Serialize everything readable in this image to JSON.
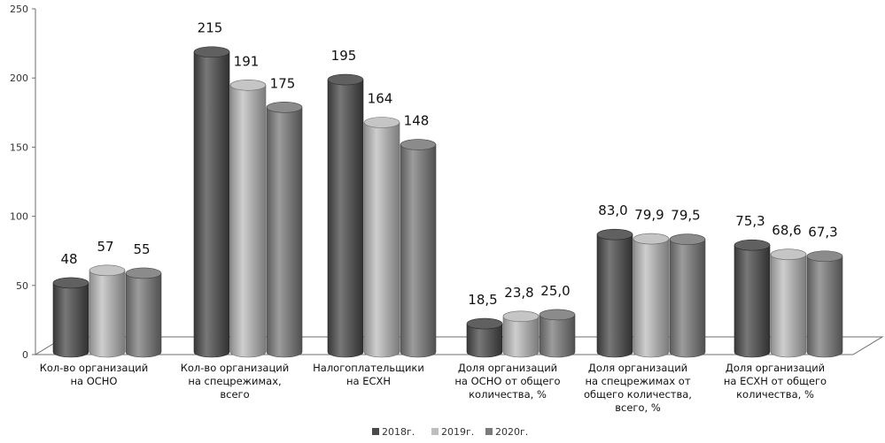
{
  "chart_data": {
    "type": "bar",
    "style": "3d-cylinder",
    "title": "",
    "xlabel": "",
    "ylabel": "",
    "ylim": [
      0,
      250
    ],
    "yticks": [
      0,
      50,
      100,
      150,
      200,
      250
    ],
    "ytick_labels": [
      "0",
      "50",
      "100",
      "150",
      "200",
      "250"
    ],
    "grid": false,
    "legend_position": "bottom-center",
    "categories": [
      [
        "Кол-во организаций",
        "на ОСНО"
      ],
      [
        "Кол-во организаций",
        "на спецрежимах,",
        "всего"
      ],
      [
        "Налогоплательщики",
        "на ЕСХН"
      ],
      [
        "Доля организаций",
        "на ОСНО от общего",
        "количества, %"
      ],
      [
        "Доля организаций",
        "на спецрежимах от",
        "общего количества,",
        "всего, %"
      ],
      [
        "Доля организаций",
        "на ЕСХН от общего",
        "количества, %"
      ]
    ],
    "series": [
      {
        "name": "2018г.",
        "color": "#4a4a4a",
        "values": [
          48,
          215,
          195,
          18.5,
          83.0,
          75.3
        ],
        "labels": [
          "48",
          "215",
          "195",
          "18,5",
          "83,0",
          "75,3"
        ]
      },
      {
        "name": "2019г.",
        "color": "#bdbdbd",
        "values": [
          57,
          191,
          164,
          23.8,
          79.9,
          68.6
        ],
        "labels": [
          "57",
          "191",
          "164",
          "23,8",
          "79,9",
          "68,6"
        ]
      },
      {
        "name": "2020г.",
        "color": "#7b7b7b",
        "values": [
          55,
          175,
          148,
          25.0,
          79.5,
          67.3
        ],
        "labels": [
          "55",
          "175",
          "148",
          "25,0",
          "79,5",
          "67,3"
        ]
      }
    ]
  }
}
